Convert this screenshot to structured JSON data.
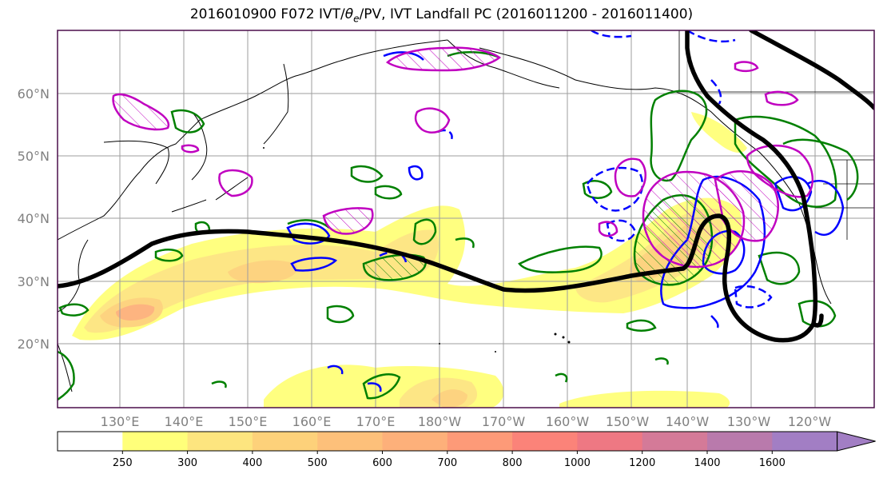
{
  "title": "2016010900 F072 IVT/θe/PV, IVT Landfall PC (2016011200 - 2016011400)",
  "map": {
    "lat_labels": [
      "60°N",
      "50°N",
      "40°N",
      "30°N",
      "20°N"
    ],
    "lon_labels": [
      "130°E",
      "140°E",
      "150°E",
      "160°E",
      "170°E",
      "180°W",
      "170°W",
      "160°W",
      "150°W",
      "140°W",
      "130°W",
      "120°W"
    ],
    "frame_color": "#4b0f4b",
    "grid_color": "#9e9e9e",
    "contour_colors": {
      "pv": "#008000",
      "theta_e": "#0000ff",
      "landfall": "#c000c0",
      "front": "#000000"
    }
  },
  "colorbar": {
    "levels": [
      "250",
      "300",
      "400",
      "500",
      "600",
      "700",
      "800",
      "1000",
      "1200",
      "1400",
      "1600"
    ],
    "colors": [
      "#ffffff",
      "#ffff7a",
      "#fde57f",
      "#fdd17a",
      "#fdc07a",
      "#fdb07a",
      "#fd9a78",
      "#fb8379",
      "#ee7883",
      "#d47a98",
      "#b97aac",
      "#a27ec4"
    ],
    "extend": "max"
  }
}
